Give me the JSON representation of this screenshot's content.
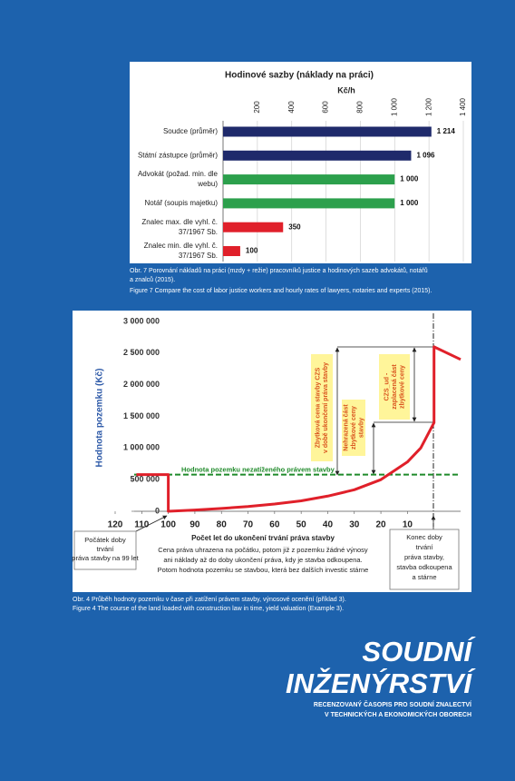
{
  "chart_data": [
    {
      "type": "barh",
      "title": "Hodinové sazby (náklady na práci)",
      "x_label": "Kč/h",
      "categories": [
        [
          "Soudce (průměr)"
        ],
        [
          "Státní zástupce (průměr)"
        ],
        [
          "Advokát (požad. min. dle",
          "webu)"
        ],
        [
          "Notář (soupis majetku)"
        ],
        [
          "Znalec max. dle vyhl. č.",
          "37/1967 Sb."
        ],
        [
          "Znalec min. dle vyhl. č.",
          "37/1967 Sb."
        ]
      ],
      "values": [
        1214,
        1096,
        1000,
        1000,
        350,
        100
      ],
      "value_labels": [
        "1 214",
        "1 096",
        "1 000",
        "1 000",
        "350",
        "100"
      ],
      "colors": [
        "#1f2a6b",
        "#1f2a6b",
        "#2ca04c",
        "#2ca04c",
        "#e0202a",
        "#e0202a"
      ],
      "xlim": [
        0,
        1400
      ],
      "xticks": [
        200,
        400,
        600,
        800,
        {
          "value": 1000,
          "label": "1 000"
        },
        {
          "value": 1200,
          "label": "1 200"
        },
        {
          "value": 1400,
          "label": "1 400"
        }
      ],
      "grid": true
    },
    {
      "type": "line",
      "y_label": "Hodnota pozemku (Kč)",
      "x_label": "Počet let do ukončení trvání práva stavby",
      "x": [
        112,
        100,
        100,
        90,
        80,
        70,
        60,
        50,
        40,
        30,
        20,
        10,
        5,
        0,
        0,
        -10
      ],
      "series": [
        {
          "color": "#e0202a",
          "values": [
            580000,
            580000,
            0,
            20000,
            45000,
            75000,
            115000,
            165000,
            240000,
            340000,
            500000,
            780000,
            1000000,
            1400000,
            2600000,
            2400000
          ]
        }
      ],
      "xlim": [
        120,
        -10
      ],
      "xticks": [
        120,
        110,
        100,
        90,
        80,
        70,
        60,
        50,
        40,
        30,
        20,
        10
      ],
      "ylim": [
        0,
        3000000
      ],
      "yticks": [
        0,
        {
          "value": 500000,
          "label": "500 000"
        },
        {
          "value": 1000000,
          "label": "1 000 000"
        },
        {
          "value": 1500000,
          "label": "1 500 000"
        },
        {
          "value": 2000000,
          "label": "2 000 000"
        },
        {
          "value": 2500000,
          "label": "2 500 000"
        },
        {
          "value": 3000000,
          "label": "3 000 000"
        }
      ],
      "reference_line": {
        "value": 580000,
        "label": "Hodnota pozemku nezatíženého právem stavby",
        "color": "#1f8a2a"
      },
      "annotations": [
        [
          "Zbytková cena stavby CZS",
          "v době ukončení práva stavby"
        ],
        [
          "Nehrazená část",
          "zbytkové ceny",
          "stavby"
        ],
        [
          "CZS_ud -",
          "zaplacená část",
          "zbytkové ceny"
        ]
      ],
      "notes": [
        [
          "Počátek doby",
          "trvání",
          "práva stavby na 99 let"
        ],
        [
          "Cena práva uhrazena na počátku, potom již z pozemku žádné výnosy",
          "ani náklady až do doby ukončení práva, kdy je stavba odkoupena.",
          "Potom hodnota pozemku se stavbou, která bez dalších investic stárne"
        ],
        [
          "Konec doby",
          "trvání",
          "práva stavby,",
          "stavba odkoupena",
          "a stárne"
        ]
      ]
    }
  ],
  "captions": [
    [
      "Obr. 7  Porovnání nákladů na práci (mzdy + režie) pracovníků justice a hodinových sazeb advokátů, notářů",
      "a znalců (2015).",
      "Figure 7  Compare the cost of labor justice workers and hourly rates of lawyers, notaries and experts (2015)."
    ],
    [
      "Obr. 4  Průběh hodnoty pozemku v čase při zatížení právem stavby, výnosové ocenění (příklad 3).",
      "Figure 4  The course of the land loaded with construction law in time, yield valuation (Example 3)."
    ]
  ],
  "masthead": {
    "title": [
      "SOUDNÍ",
      "INŽENÝRSTVÍ"
    ],
    "subtitle": [
      "RECENZOVANÝ ČASOPIS PRO SOUDNÍ ZNALECTVÍ",
      "V TECHNICKÝCH A EKONOMICKÝCH OBORECH"
    ]
  }
}
